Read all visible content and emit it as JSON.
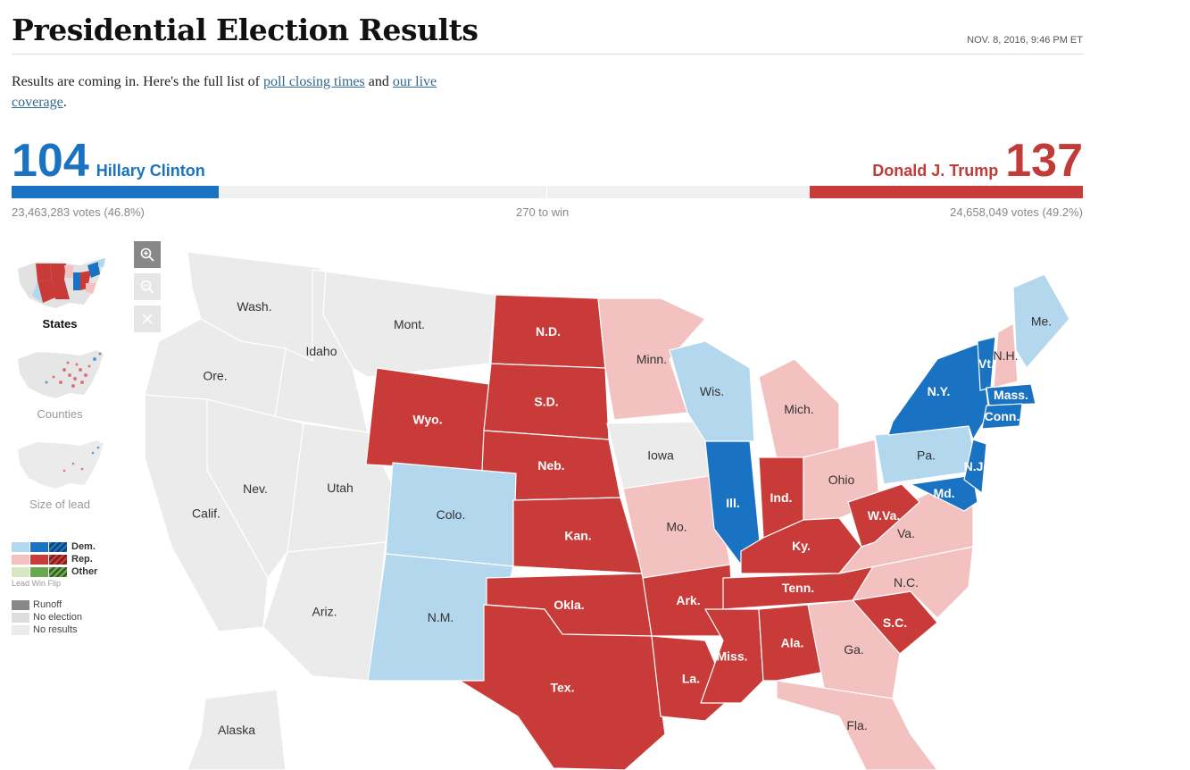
{
  "header": {
    "title": "Presidential Election Results",
    "timestamp": "NOV. 8, 2016, 9:46 PM ET"
  },
  "intro": {
    "text_before": "Results are coming in. Here's the full list of ",
    "link1": "poll closing times",
    "text_mid": " and ",
    "link2": "our live coverage",
    "text_after": "."
  },
  "tally": {
    "dem": {
      "ev": "104",
      "name": "Hillary Clinton",
      "votes": "23,463,283 votes (46.8%)",
      "color": "#1a73c2",
      "ev_fraction": 0.1933
    },
    "rep": {
      "ev": "137",
      "name": "Donald J. Trump",
      "votes": "24,658,049 votes (49.2%)",
      "color": "#c93b38",
      "ev_fraction": 0.2546
    },
    "to_win": "270 to win"
  },
  "views": [
    {
      "label": "States",
      "active": true
    },
    {
      "label": "Counties",
      "active": false
    },
    {
      "label": "Size of lead",
      "active": false
    }
  ],
  "zoom": {
    "in_icon": "zoom-in-icon",
    "out_icon": "zoom-out-icon",
    "reset_icon": "close-icon"
  },
  "legend": {
    "dem": "Dem.",
    "rep": "Rep.",
    "other": "Other",
    "sub": "Lead Win  Flip",
    "runoff": "Runoff",
    "no_election": "No election",
    "no_results": "No results",
    "colors": {
      "dem_lead": "#b3d7ed",
      "dem_win": "#1a73c2",
      "rep_lead": "#f3c2c0",
      "rep_win": "#c93b38",
      "other_lead": "#d5e8c0",
      "other_win": "#6aa84f",
      "runoff": "#888888",
      "no_election": "#dddddd",
      "no_results": "#ebebeb"
    }
  },
  "states": [
    {
      "abbr": "Wash.",
      "status": "none"
    },
    {
      "abbr": "Ore.",
      "status": "none"
    },
    {
      "abbr": "Idaho",
      "status": "none"
    },
    {
      "abbr": "Mont.",
      "status": "none"
    },
    {
      "abbr": "Nev.",
      "status": "none"
    },
    {
      "abbr": "Calif.",
      "status": "none"
    },
    {
      "abbr": "Utah",
      "status": "none"
    },
    {
      "abbr": "Ariz.",
      "status": "none"
    },
    {
      "abbr": "Alaska",
      "status": "none"
    },
    {
      "abbr": "Iowa",
      "status": "none"
    },
    {
      "abbr": "Wyo.",
      "status": "rep_win"
    },
    {
      "abbr": "N.D.",
      "status": "rep_win"
    },
    {
      "abbr": "S.D.",
      "status": "rep_win"
    },
    {
      "abbr": "Neb.",
      "status": "rep_win"
    },
    {
      "abbr": "Kan.",
      "status": "rep_win"
    },
    {
      "abbr": "Okla.",
      "status": "rep_win"
    },
    {
      "abbr": "Tex.",
      "status": "rep_win"
    },
    {
      "abbr": "Ark.",
      "status": "rep_win"
    },
    {
      "abbr": "La.",
      "status": "rep_win"
    },
    {
      "abbr": "Miss.",
      "status": "rep_win"
    },
    {
      "abbr": "Ala.",
      "status": "rep_win"
    },
    {
      "abbr": "Tenn.",
      "status": "rep_win"
    },
    {
      "abbr": "Ky.",
      "status": "rep_win"
    },
    {
      "abbr": "Ind.",
      "status": "rep_win"
    },
    {
      "abbr": "W.Va.",
      "status": "rep_win"
    },
    {
      "abbr": "S.C.",
      "status": "rep_win"
    },
    {
      "abbr": "Colo.",
      "status": "dem_lead"
    },
    {
      "abbr": "N.M.",
      "status": "dem_lead"
    },
    {
      "abbr": "Wis.",
      "status": "dem_lead"
    },
    {
      "abbr": "Pa.",
      "status": "dem_lead"
    },
    {
      "abbr": "Me.",
      "status": "dem_lead"
    },
    {
      "abbr": "Ill.",
      "status": "dem_win"
    },
    {
      "abbr": "N.Y.",
      "status": "dem_win"
    },
    {
      "abbr": "Vt.",
      "status": "dem_win"
    },
    {
      "abbr": "Mass.",
      "status": "dem_win"
    },
    {
      "abbr": "Conn.",
      "status": "dem_win"
    },
    {
      "abbr": "N.J.",
      "status": "dem_win"
    },
    {
      "abbr": "Md.",
      "status": "dem_win"
    },
    {
      "abbr": "Minn.",
      "status": "rep_lead"
    },
    {
      "abbr": "Mich.",
      "status": "rep_lead"
    },
    {
      "abbr": "Ohio",
      "status": "rep_lead"
    },
    {
      "abbr": "Mo.",
      "status": "rep_lead"
    },
    {
      "abbr": "Va.",
      "status": "rep_lead"
    },
    {
      "abbr": "N.C.",
      "status": "rep_lead"
    },
    {
      "abbr": "Ga.",
      "status": "rep_lead"
    },
    {
      "abbr": "Fla.",
      "status": "rep_lead"
    },
    {
      "abbr": "N.H.",
      "status": "rep_lead"
    }
  ]
}
